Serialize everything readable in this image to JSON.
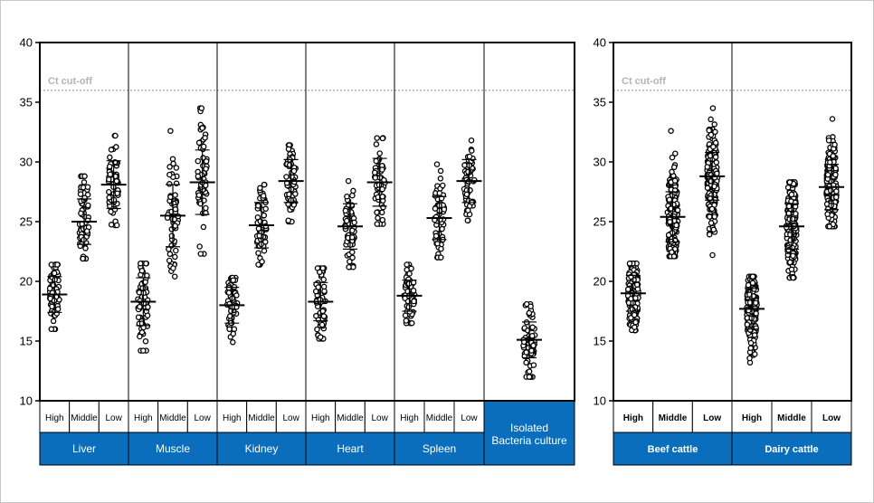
{
  "colors": {
    "band": "#0a6ebd",
    "cutoff_line": "#b4b4b4",
    "marker": "#000000"
  },
  "chart_data": [
    {
      "type": "scatter",
      "ylim": [
        10,
        40
      ],
      "yticks": [
        "10",
        "15",
        "20",
        "25",
        "30",
        "35",
        "40"
      ],
      "cutoff": {
        "label": "Ct cut-off",
        "value": 36
      },
      "groups": [
        {
          "name": "Liver",
          "categories": [
            "High",
            "Middle",
            "Low"
          ]
        },
        {
          "name": "Muscle",
          "categories": [
            "High",
            "Middle",
            "Low"
          ]
        },
        {
          "name": "Kidney",
          "categories": [
            "High",
            "Middle",
            "Low"
          ]
        },
        {
          "name": "Heart",
          "categories": [
            "High",
            "Middle",
            "Low"
          ]
        },
        {
          "name": "Spleen",
          "categories": [
            "High",
            "Middle",
            "Low"
          ]
        },
        {
          "name": "Isolated Bacteria culture",
          "name_lines": [
            "Isolated",
            "Bacteria culture"
          ],
          "categories": [
            ""
          ]
        }
      ],
      "stats": [
        {
          "group": "Liver",
          "category": "High",
          "mean": 18.9,
          "sd": 1.5,
          "min": 16.0,
          "max": 21.4
        },
        {
          "group": "Liver",
          "category": "Middle",
          "mean": 25.0,
          "sd": 1.9,
          "min": 21.9,
          "max": 28.8
        },
        {
          "group": "Liver",
          "category": "Low",
          "mean": 28.1,
          "sd": 2.0,
          "min": 24.7,
          "max": 32.2
        },
        {
          "group": "Muscle",
          "category": "High",
          "mean": 18.3,
          "sd": 2.0,
          "min": 14.2,
          "max": 21.5
        },
        {
          "group": "Muscle",
          "category": "Middle",
          "mean": 25.5,
          "sd": 2.6,
          "min": 20.4,
          "max": 32.6
        },
        {
          "group": "Muscle",
          "category": "Low",
          "mean": 28.3,
          "sd": 2.7,
          "min": 22.3,
          "max": 34.5
        },
        {
          "group": "Kidney",
          "category": "High",
          "mean": 18.0,
          "sd": 1.5,
          "min": 14.9,
          "max": 20.3
        },
        {
          "group": "Kidney",
          "category": "Middle",
          "mean": 24.7,
          "sd": 1.9,
          "min": 21.4,
          "max": 28.1
        },
        {
          "group": "Kidney",
          "category": "Low",
          "mean": 28.4,
          "sd": 1.8,
          "min": 25.0,
          "max": 31.4
        },
        {
          "group": "Heart",
          "category": "High",
          "mean": 18.3,
          "sd": 1.6,
          "min": 15.2,
          "max": 21.1
        },
        {
          "group": "Heart",
          "category": "Middle",
          "mean": 24.6,
          "sd": 1.9,
          "min": 21.2,
          "max": 28.4
        },
        {
          "group": "Heart",
          "category": "Low",
          "mean": 28.3,
          "sd": 2.0,
          "min": 24.8,
          "max": 32.0
        },
        {
          "group": "Spleen",
          "category": "High",
          "mean": 18.8,
          "sd": 1.3,
          "min": 16.5,
          "max": 21.4
        },
        {
          "group": "Spleen",
          "category": "Middle",
          "mean": 25.3,
          "sd": 1.8,
          "min": 22.0,
          "max": 29.8
        },
        {
          "group": "Spleen",
          "category": "Low",
          "mean": 28.4,
          "sd": 1.8,
          "min": 25.1,
          "max": 31.8
        },
        {
          "group": "Isolated Bacteria culture",
          "category": "",
          "mean": 15.1,
          "sd": 1.5,
          "min": 12.0,
          "max": 18.1
        }
      ]
    },
    {
      "type": "scatter",
      "ylim": [
        10,
        40
      ],
      "yticks": [
        "10",
        "15",
        "20",
        "25",
        "30",
        "35",
        "40"
      ],
      "cutoff": {
        "label": "Ct cut-off",
        "value": 36
      },
      "groups": [
        {
          "name": "Beef cattle",
          "categories": [
            "High",
            "Middle",
            "Low"
          ]
        },
        {
          "name": "Dairy cattle",
          "categories": [
            "High",
            "Middle",
            "Low"
          ]
        }
      ],
      "stats": [
        {
          "group": "Beef cattle",
          "category": "High",
          "mean": 19.0,
          "sd": 1.5,
          "min": 15.9,
          "max": 21.5
        },
        {
          "group": "Beef cattle",
          "category": "Middle",
          "mean": 25.4,
          "sd": 2.1,
          "min": 22.1,
          "max": 32.6
        },
        {
          "group": "Beef cattle",
          "category": "Low",
          "mean": 28.8,
          "sd": 2.0,
          "min": 22.2,
          "max": 34.5
        },
        {
          "group": "Dairy cattle",
          "category": "High",
          "mean": 17.7,
          "sd": 1.7,
          "min": 13.2,
          "max": 20.4
        },
        {
          "group": "Dairy cattle",
          "category": "Middle",
          "mean": 24.6,
          "sd": 1.9,
          "min": 20.3,
          "max": 28.3
        },
        {
          "group": "Dairy cattle",
          "category": "Low",
          "mean": 27.9,
          "sd": 1.9,
          "min": 24.6,
          "max": 33.6
        }
      ]
    }
  ]
}
